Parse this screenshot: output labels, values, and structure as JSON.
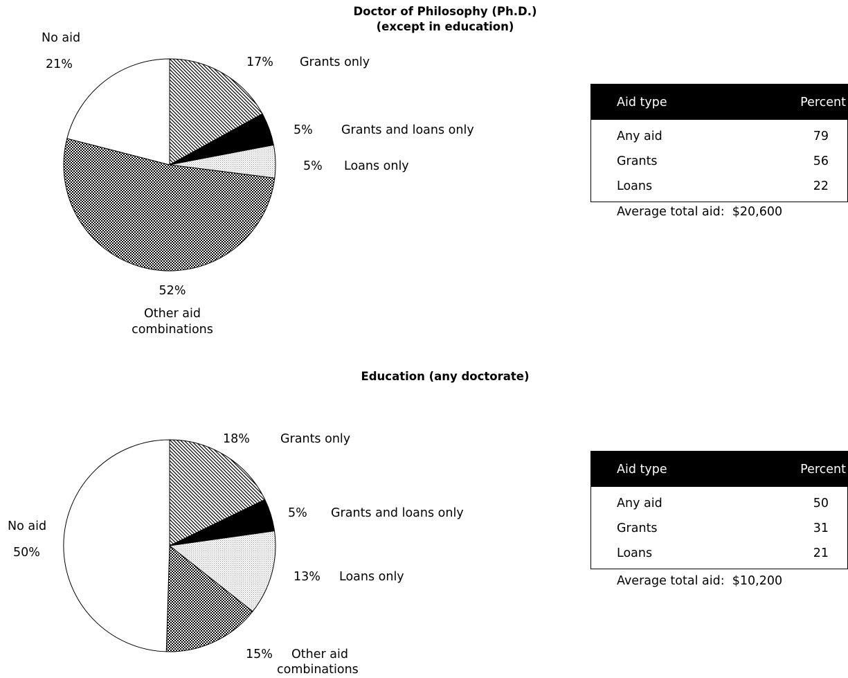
{
  "chart_data": [
    {
      "type": "pie",
      "title": "Doctor of Philosophy (Ph.D.)\n(except in education)",
      "title_line1": "Doctor of Philosophy (Ph.D.)",
      "title_line2": "(except in education)",
      "slices": [
        {
          "label": "Grants only",
          "value": 17,
          "value_label": "17%",
          "pattern": "diagonal-hatch"
        },
        {
          "label": "Grants and loans only",
          "value": 5,
          "value_label": "5%",
          "pattern": "solid-black"
        },
        {
          "label": "Loans only",
          "value": 5,
          "value_label": "5%",
          "pattern": "light-dots"
        },
        {
          "label": "Other aid combinations",
          "label_line1": "Other aid",
          "label_line2": "combinations",
          "value": 52,
          "value_label": "52%",
          "pattern": "checker"
        },
        {
          "label": "No aid",
          "value": 21,
          "value_label": "21%",
          "pattern": "white"
        }
      ],
      "table": {
        "headers": [
          "Aid type",
          "Percent"
        ],
        "rows": [
          {
            "type": "Any aid",
            "percent": "79"
          },
          {
            "type": "Grants",
            "percent": "56"
          },
          {
            "type": "Loans",
            "percent": "22"
          }
        ]
      },
      "average": {
        "label": "Average total aid:",
        "value": "$20,600"
      }
    },
    {
      "type": "pie",
      "title": "Education (any doctorate)",
      "slices": [
        {
          "label": "Grants only",
          "value": 18,
          "value_label": "18%",
          "pattern": "diagonal-hatch"
        },
        {
          "label": "Grants and loans only",
          "value": 5,
          "value_label": "5%",
          "pattern": "solid-black"
        },
        {
          "label": "Loans only",
          "value": 13,
          "value_label": "13%",
          "pattern": "light-dots"
        },
        {
          "label": "Other aid combinations",
          "label_line1": "Other aid",
          "label_line2": "combinations",
          "value": 15,
          "value_label": "15%",
          "pattern": "checker"
        },
        {
          "label": "No aid",
          "value": 50,
          "value_label": "50%",
          "pattern": "white"
        }
      ],
      "table": {
        "headers": [
          "Aid type",
          "Percent"
        ],
        "rows": [
          {
            "type": "Any aid",
            "percent": "50"
          },
          {
            "type": "Grants",
            "percent": "31"
          },
          {
            "type": "Loans",
            "percent": "21"
          }
        ]
      },
      "average": {
        "label": "Average total aid:",
        "value": "$10,200"
      }
    }
  ]
}
